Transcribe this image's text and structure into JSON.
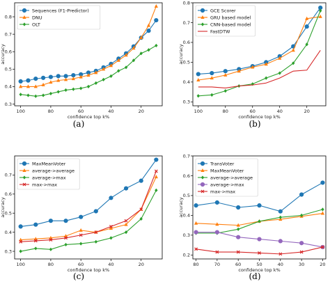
{
  "chart_data": [
    {
      "type": "line",
      "caption": "(a)",
      "xlabel": "confidence top k%",
      "ylabel": "accuracy",
      "xticks": [
        "100",
        "80",
        "60",
        "40",
        "20"
      ],
      "xlim": [
        104,
        6
      ],
      "ylim": [
        0.29,
        0.88
      ],
      "yticks": [
        "0.3",
        "0.4",
        "0.5",
        "0.6",
        "0.7",
        "0.8"
      ],
      "legend_position": "top-left",
      "x": [
        100,
        95,
        90,
        85,
        80,
        75,
        70,
        65,
        60,
        55,
        50,
        45,
        40,
        35,
        30,
        25,
        20,
        15,
        10
      ],
      "series": [
        {
          "name": "Sequences (F1-Predictor)",
          "color": "#1f77b4",
          "marker": "o",
          "values": [
            0.43,
            0.435,
            0.445,
            0.45,
            0.455,
            0.46,
            0.46,
            0.465,
            0.47,
            0.48,
            0.49,
            0.51,
            0.53,
            0.56,
            0.59,
            0.63,
            0.68,
            0.72,
            0.78
          ]
        },
        {
          "name": "DNU",
          "color": "#ff7f0e",
          "marker": "^",
          "values": [
            0.4,
            0.4,
            0.4,
            0.41,
            0.425,
            0.435,
            0.44,
            0.445,
            0.455,
            0.465,
            0.48,
            0.5,
            0.52,
            0.55,
            0.58,
            0.62,
            0.68,
            0.75,
            0.86
          ]
        },
        {
          "name": "OLT",
          "color": "#2ca02c",
          "marker": "D",
          "values": [
            0.355,
            0.35,
            0.345,
            0.35,
            0.36,
            0.37,
            0.38,
            0.385,
            0.39,
            0.4,
            0.42,
            0.44,
            0.46,
            0.49,
            0.51,
            0.55,
            0.59,
            0.61,
            0.635
          ]
        }
      ]
    },
    {
      "type": "line",
      "caption": "(b)",
      "xlabel": "confidence top k%",
      "ylabel": "accuracy",
      "xticks": [
        "100",
        "80",
        "60",
        "40",
        "20"
      ],
      "xlim": [
        104,
        6
      ],
      "ylim": [
        0.28,
        0.8
      ],
      "yticks": [
        "0.3",
        "0.4",
        "0.5",
        "0.6",
        "0.7",
        "0.8"
      ],
      "legend_position": "top-left",
      "x": [
        100,
        90,
        80,
        70,
        60,
        50,
        40,
        30,
        20,
        10
      ],
      "series": [
        {
          "name": "GCE Scorer",
          "color": "#1f77b4",
          "marker": "o",
          "values": [
            0.44,
            0.445,
            0.455,
            0.465,
            0.48,
            0.5,
            0.53,
            0.58,
            0.68,
            0.775
          ]
        },
        {
          "name": "GRU based model",
          "color": "#ff7f0e",
          "marker": "^",
          "values": [
            0.41,
            0.42,
            0.435,
            0.455,
            0.475,
            0.49,
            0.52,
            0.56,
            0.72,
            0.73
          ]
        },
        {
          "name": "CNN-based model",
          "color": "#2ca02c",
          "marker": "D",
          "values": [
            0.33,
            0.335,
            0.355,
            0.38,
            0.39,
            0.42,
            0.445,
            0.495,
            0.59,
            0.76
          ]
        },
        {
          "name": "FastDTW",
          "color": "#d62728",
          "marker": "none",
          "values": [
            0.375,
            0.375,
            0.37,
            0.38,
            0.385,
            0.395,
            0.42,
            0.455,
            0.46,
            0.56
          ]
        }
      ]
    },
    {
      "type": "line",
      "caption": "(c)",
      "xlabel": "confidence top k%",
      "ylabel": "accuracy",
      "xticks": [
        "100",
        "80",
        "60",
        "40",
        "20"
      ],
      "xlim": [
        104,
        6
      ],
      "ylim": [
        0.26,
        0.8
      ],
      "yticks": [
        "0.3",
        "0.4",
        "0.5",
        "0.6",
        "0.7"
      ],
      "legend_position": "top-left",
      "x": [
        100,
        90,
        80,
        70,
        60,
        50,
        40,
        30,
        20,
        10
      ],
      "series": [
        {
          "name": "MaxMeanVoter",
          "color": "#1f77b4",
          "marker": "o",
          "values": [
            0.43,
            0.44,
            0.46,
            0.46,
            0.48,
            0.51,
            0.58,
            0.63,
            0.67,
            0.78
          ]
        },
        {
          "name": "average->average",
          "color": "#ff7f0e",
          "marker": "^",
          "values": [
            0.36,
            0.365,
            0.37,
            0.38,
            0.41,
            0.4,
            0.42,
            0.44,
            0.52,
            0.69
          ]
        },
        {
          "name": "average->max",
          "color": "#2ca02c",
          "marker": "D",
          "values": [
            0.3,
            0.315,
            0.31,
            0.335,
            0.34,
            0.35,
            0.37,
            0.4,
            0.47,
            0.62
          ]
        },
        {
          "name": "max->max",
          "color": "#d62728",
          "marker": "x",
          "values": [
            0.35,
            0.355,
            0.36,
            0.37,
            0.385,
            0.4,
            0.43,
            0.46,
            0.52,
            0.72
          ]
        }
      ]
    },
    {
      "type": "line",
      "caption": "(d)",
      "xlabel": "confidence top k%",
      "ylabel": "accuracy",
      "xticks": [
        "80",
        "70",
        "60",
        "50",
        "40",
        "30",
        "20"
      ],
      "xlim": [
        81.5,
        18.5
      ],
      "ylim": [
        0.18,
        0.7
      ],
      "yticks": [
        "0.2",
        "0.3",
        "0.4",
        "0.5",
        "0.6",
        "0.7"
      ],
      "legend_position": "top-left",
      "x": [
        80,
        70,
        60,
        50,
        40,
        30,
        20
      ],
      "series": [
        {
          "name": "TransVoter",
          "color": "#1f77b4",
          "marker": "o",
          "values": [
            0.45,
            0.465,
            0.44,
            0.45,
            0.42,
            0.505,
            0.565
          ]
        },
        {
          "name": "MaxMeanVoter",
          "color": "#ff7f0e",
          "marker": "^",
          "values": [
            0.36,
            0.355,
            0.35,
            0.37,
            0.38,
            0.395,
            0.41
          ]
        },
        {
          "name": "average->average",
          "color": "#2ca02c",
          "marker": "D",
          "values": [
            0.31,
            0.31,
            0.33,
            0.37,
            0.39,
            0.4,
            0.43
          ]
        },
        {
          "name": "average->max",
          "color": "#9467bd",
          "marker": "o",
          "values": [
            0.315,
            0.315,
            0.29,
            0.28,
            0.27,
            0.26,
            0.24
          ]
        },
        {
          "name": "max->max",
          "color": "#d62728",
          "marker": "x",
          "values": [
            0.23,
            0.215,
            0.215,
            0.21,
            0.205,
            0.215,
            0.24
          ]
        }
      ]
    }
  ]
}
